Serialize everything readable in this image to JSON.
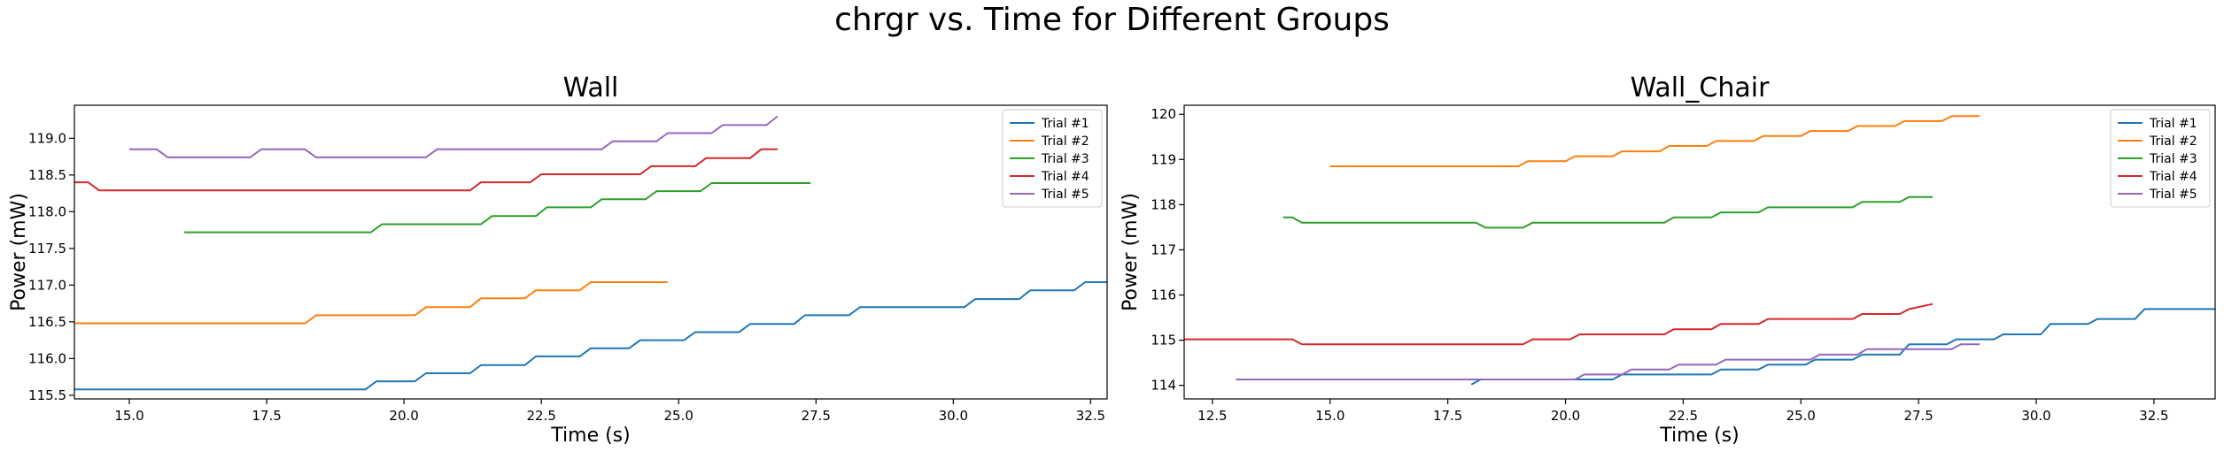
{
  "figure": {
    "title": "chrgr vs. Time for Different Groups"
  },
  "legend_labels": [
    "Trial #1",
    "Trial #2",
    "Trial #3",
    "Trial #4",
    "Trial #5"
  ],
  "series_colors": [
    "#1f77b4",
    "#ff7f0e",
    "#2ca02c",
    "#d62728",
    "#9467bd"
  ],
  "chart_data": [
    {
      "type": "line",
      "title": "Wall",
      "xlabel": "Time (s)",
      "ylabel": "Power (mW)",
      "xlim": [
        14.0,
        32.8
      ],
      "ylim": [
        115.45,
        119.45
      ],
      "xticks": [
        15.0,
        17.5,
        20.0,
        22.5,
        25.0,
        27.5,
        30.0,
        32.5
      ],
      "xtick_labels": [
        "15.0",
        "17.5",
        "20.0",
        "22.5",
        "25.0",
        "27.5",
        "30.0",
        "32.5"
      ],
      "yticks": [
        115.5,
        116.0,
        116.5,
        117.0,
        117.5,
        118.0,
        118.5,
        119.0
      ],
      "ytick_labels": [
        "115.5",
        "116.0",
        "116.5",
        "117.0",
        "117.5",
        "118.0",
        "118.5",
        "119.0"
      ],
      "grid": false,
      "legend_position": "top-right",
      "series": [
        {
          "name": "Trial #1",
          "x": [
            14.0,
            19.3,
            19.5,
            20.2,
            20.4,
            21.2,
            21.4,
            22.2,
            22.4,
            23.2,
            23.4,
            24.1,
            24.3,
            25.1,
            25.3,
            26.1,
            26.3,
            27.1,
            27.3,
            28.1,
            28.3,
            30.2,
            30.4,
            31.2,
            31.4,
            32.2,
            32.4,
            32.8
          ],
          "y": [
            115.58,
            115.58,
            115.69,
            115.69,
            115.8,
            115.8,
            115.91,
            115.91,
            116.03,
            116.03,
            116.14,
            116.14,
            116.25,
            116.25,
            116.36,
            116.36,
            116.47,
            116.47,
            116.59,
            116.59,
            116.7,
            116.7,
            116.81,
            116.81,
            116.93,
            116.93,
            117.04,
            117.04
          ]
        },
        {
          "name": "Trial #2",
          "x": [
            14.0,
            18.2,
            18.4,
            20.2,
            20.4,
            21.2,
            21.4,
            22.2,
            22.4,
            23.2,
            23.4,
            24.8
          ],
          "y": [
            116.48,
            116.48,
            116.59,
            116.59,
            116.7,
            116.7,
            116.82,
            116.82,
            116.93,
            116.93,
            117.04,
            117.04
          ]
        },
        {
          "name": "Trial #3",
          "x": [
            16.0,
            19.4,
            19.6,
            21.4,
            21.6,
            22.4,
            22.6,
            23.4,
            23.6,
            24.4,
            24.6,
            25.4,
            25.6,
            27.4
          ],
          "y": [
            117.72,
            117.72,
            117.83,
            117.83,
            117.94,
            117.94,
            118.06,
            118.06,
            118.17,
            118.17,
            118.28,
            118.28,
            118.39,
            118.39
          ]
        },
        {
          "name": "Trial #4",
          "x": [
            14.0,
            14.25,
            14.45,
            21.2,
            21.4,
            22.3,
            22.5,
            24.3,
            24.5,
            25.3,
            25.5,
            26.3,
            26.5,
            26.8
          ],
          "y": [
            118.4,
            118.4,
            118.29,
            118.29,
            118.4,
            118.4,
            118.51,
            118.51,
            118.62,
            118.62,
            118.73,
            118.73,
            118.85,
            118.85
          ]
        },
        {
          "name": "Trial #5",
          "x": [
            15.0,
            15.5,
            15.7,
            17.2,
            17.4,
            18.2,
            18.4,
            20.4,
            20.6,
            23.6,
            23.8,
            24.6,
            24.8,
            25.6,
            25.8,
            26.6,
            26.8
          ],
          "y": [
            118.85,
            118.85,
            118.74,
            118.74,
            118.85,
            118.85,
            118.74,
            118.74,
            118.85,
            118.85,
            118.96,
            118.96,
            119.07,
            119.07,
            119.18,
            119.18,
            119.3
          ]
        }
      ]
    },
    {
      "type": "line",
      "title": "Wall_Chair",
      "xlabel": "Time (s)",
      "ylabel": "Power (mW)",
      "xlim": [
        11.9,
        33.8
      ],
      "ylim": [
        113.7,
        120.2
      ],
      "xticks": [
        12.5,
        15.0,
        17.5,
        20.0,
        22.5,
        25.0,
        27.5,
        30.0,
        32.5
      ],
      "xtick_labels": [
        "12.5",
        "15.0",
        "17.5",
        "20.0",
        "22.5",
        "25.0",
        "27.5",
        "30.0",
        "32.5"
      ],
      "yticks": [
        114,
        115,
        116,
        117,
        118,
        119,
        120
      ],
      "ytick_labels": [
        "114",
        "115",
        "116",
        "117",
        "118",
        "119",
        "120"
      ],
      "grid": false,
      "legend_position": "top-right",
      "series": [
        {
          "name": "Trial #1",
          "x": [
            18.0,
            18.2,
            21.0,
            21.2,
            23.1,
            23.3,
            24.1,
            24.3,
            25.1,
            25.3,
            26.1,
            26.3,
            27.1,
            27.3,
            28.1,
            28.3,
            29.1,
            29.3,
            30.1,
            30.3,
            31.1,
            31.3,
            32.1,
            32.3,
            33.8
          ],
          "y": [
            114.02,
            114.13,
            114.13,
            114.24,
            114.24,
            114.35,
            114.35,
            114.46,
            114.46,
            114.57,
            114.57,
            114.68,
            114.68,
            114.91,
            114.91,
            115.02,
            115.02,
            115.13,
            115.13,
            115.36,
            115.36,
            115.47,
            115.47,
            115.69,
            115.69
          ]
        },
        {
          "name": "Trial #2",
          "x": [
            15.0,
            19.0,
            19.2,
            20.0,
            20.2,
            21.0,
            21.2,
            22.0,
            22.2,
            23.0,
            23.2,
            24.0,
            24.2,
            25.0,
            25.2,
            26.0,
            26.2,
            27.0,
            27.2,
            28.0,
            28.2,
            28.8
          ],
          "y": [
            118.85,
            118.85,
            118.96,
            118.96,
            119.07,
            119.07,
            119.18,
            119.18,
            119.3,
            119.3,
            119.41,
            119.41,
            119.52,
            119.52,
            119.63,
            119.63,
            119.74,
            119.74,
            119.85,
            119.85,
            119.96,
            119.96
          ]
        },
        {
          "name": "Trial #3",
          "x": [
            14.0,
            14.2,
            14.4,
            18.1,
            18.3,
            19.1,
            19.3,
            22.1,
            22.3,
            23.1,
            23.3,
            24.1,
            24.3,
            26.1,
            26.3,
            27.1,
            27.3,
            27.8
          ],
          "y": [
            117.72,
            117.72,
            117.6,
            117.6,
            117.49,
            117.49,
            117.6,
            117.6,
            117.72,
            117.72,
            117.83,
            117.83,
            117.94,
            117.94,
            118.06,
            118.06,
            118.17,
            118.17
          ]
        },
        {
          "name": "Trial #4",
          "x": [
            11.9,
            14.2,
            14.4,
            19.1,
            19.3,
            20.1,
            20.3,
            22.1,
            22.3,
            23.1,
            23.3,
            24.1,
            24.3,
            26.1,
            26.3,
            27.1,
            27.3,
            27.8
          ],
          "y": [
            115.02,
            115.02,
            114.91,
            114.91,
            115.02,
            115.02,
            115.13,
            115.13,
            115.24,
            115.24,
            115.36,
            115.36,
            115.47,
            115.47,
            115.58,
            115.58,
            115.69,
            115.8
          ]
        },
        {
          "name": "Trial #5",
          "x": [
            13.0,
            20.2,
            20.4,
            21.2,
            21.4,
            22.2,
            22.4,
            23.2,
            23.4,
            25.2,
            25.4,
            26.2,
            26.4,
            28.2,
            28.4,
            28.8
          ],
          "y": [
            114.13,
            114.13,
            114.24,
            114.24,
            114.35,
            114.35,
            114.46,
            114.46,
            114.57,
            114.57,
            114.68,
            114.68,
            114.8,
            114.8,
            114.91,
            114.91
          ]
        }
      ]
    }
  ]
}
